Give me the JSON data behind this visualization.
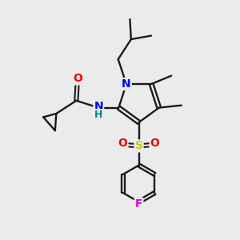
{
  "background_color": "#ebebeb",
  "bond_color": "#1a1a1a",
  "atom_colors": {
    "N": "#0000ee",
    "O": "#ee0000",
    "S": "#cccc00",
    "F": "#dd00dd",
    "H": "#008888",
    "C_label": "#1a1a1a"
  },
  "figsize": [
    3.0,
    3.0
  ],
  "dpi": 100
}
